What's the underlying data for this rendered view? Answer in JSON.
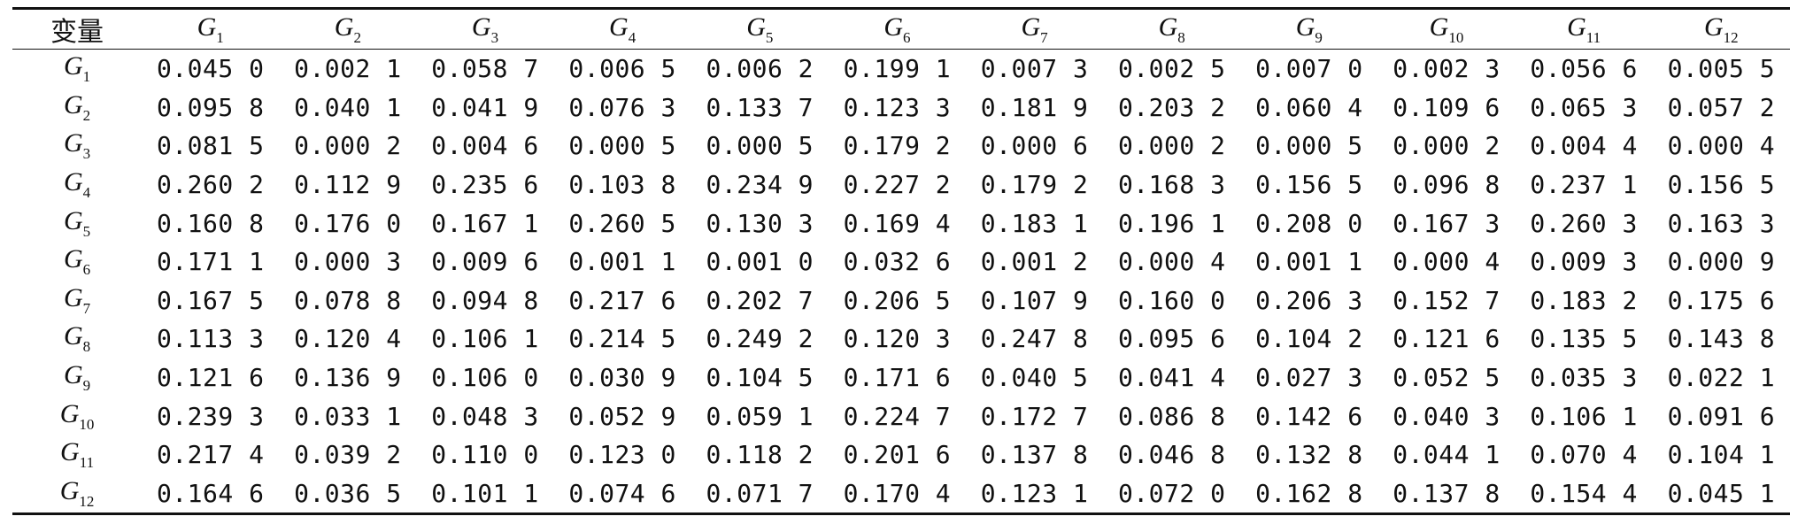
{
  "table": {
    "corner_label": "变量",
    "columns": [
      {
        "v": "G",
        "s": "1"
      },
      {
        "v": "G",
        "s": "2"
      },
      {
        "v": "G",
        "s": "3"
      },
      {
        "v": "G",
        "s": "4"
      },
      {
        "v": "G",
        "s": "5"
      },
      {
        "v": "G",
        "s": "6"
      },
      {
        "v": "G",
        "s": "7"
      },
      {
        "v": "G",
        "s": "8"
      },
      {
        "v": "G",
        "s": "9"
      },
      {
        "v": "G",
        "s": "10"
      },
      {
        "v": "G",
        "s": "11"
      },
      {
        "v": "G",
        "s": "12"
      }
    ],
    "rows": [
      {
        "v": "G",
        "s": "1",
        "cells": [
          "0.045 0",
          "0.002 1",
          "0.058 7",
          "0.006 5",
          "0.006 2",
          "0.199 1",
          "0.007 3",
          "0.002 5",
          "0.007 0",
          "0.002 3",
          "0.056 6",
          "0.005 5"
        ]
      },
      {
        "v": "G",
        "s": "2",
        "cells": [
          "0.095 8",
          "0.040 1",
          "0.041 9",
          "0.076 3",
          "0.133 7",
          "0.123 3",
          "0.181 9",
          "0.203 2",
          "0.060 4",
          "0.109 6",
          "0.065 3",
          "0.057 2"
        ]
      },
      {
        "v": "G",
        "s": "3",
        "cells": [
          "0.081 5",
          "0.000 2",
          "0.004 6",
          "0.000 5",
          "0.000 5",
          "0.179 2",
          "0.000 6",
          "0.000 2",
          "0.000 5",
          "0.000 2",
          "0.004 4",
          "0.000 4"
        ]
      },
      {
        "v": "G",
        "s": "4",
        "cells": [
          "0.260 2",
          "0.112 9",
          "0.235 6",
          "0.103 8",
          "0.234 9",
          "0.227 2",
          "0.179 2",
          "0.168 3",
          "0.156 5",
          "0.096 8",
          "0.237 1",
          "0.156 5"
        ]
      },
      {
        "v": "G",
        "s": "5",
        "cells": [
          "0.160 8",
          "0.176 0",
          "0.167 1",
          "0.260 5",
          "0.130 3",
          "0.169 4",
          "0.183 1",
          "0.196 1",
          "0.208 0",
          "0.167 3",
          "0.260 3",
          "0.163 3"
        ]
      },
      {
        "v": "G",
        "s": "6",
        "cells": [
          "0.171 1",
          "0.000 3",
          "0.009 6",
          "0.001 1",
          "0.001 0",
          "0.032 6",
          "0.001 2",
          "0.000 4",
          "0.001 1",
          "0.000 4",
          "0.009 3",
          "0.000 9"
        ]
      },
      {
        "v": "G",
        "s": "7",
        "cells": [
          "0.167 5",
          "0.078 8",
          "0.094 8",
          "0.217 6",
          "0.202 7",
          "0.206 5",
          "0.107 9",
          "0.160 0",
          "0.206 3",
          "0.152 7",
          "0.183 2",
          "0.175 6"
        ]
      },
      {
        "v": "G",
        "s": "8",
        "cells": [
          "0.113 3",
          "0.120 4",
          "0.106 1",
          "0.214 5",
          "0.249 2",
          "0.120 3",
          "0.247 8",
          "0.095 6",
          "0.104 2",
          "0.121 6",
          "0.135 5",
          "0.143 8"
        ]
      },
      {
        "v": "G",
        "s": "9",
        "cells": [
          "0.121 6",
          "0.136 9",
          "0.106 0",
          "0.030 9",
          "0.104 5",
          "0.171 6",
          "0.040 5",
          "0.041 4",
          "0.027 3",
          "0.052 5",
          "0.035 3",
          "0.022 1"
        ]
      },
      {
        "v": "G",
        "s": "10",
        "cells": [
          "0.239 3",
          "0.033 1",
          "0.048 3",
          "0.052 9",
          "0.059 1",
          "0.224 7",
          "0.172 7",
          "0.086 8",
          "0.142 6",
          "0.040 3",
          "0.106 1",
          "0.091 6"
        ]
      },
      {
        "v": "G",
        "s": "11",
        "cells": [
          "0.217 4",
          "0.039 2",
          "0.110 0",
          "0.123 0",
          "0.118 2",
          "0.201 6",
          "0.137 8",
          "0.046 8",
          "0.132 8",
          "0.044 1",
          "0.070 4",
          "0.104 1"
        ]
      },
      {
        "v": "G",
        "s": "12",
        "cells": [
          "0.164 6",
          "0.036 5",
          "0.101 1",
          "0.074 6",
          "0.071 7",
          "0.170 4",
          "0.123 1",
          "0.072 0",
          "0.162 8",
          "0.137 8",
          "0.154 4",
          "0.045 1"
        ]
      }
    ]
  }
}
